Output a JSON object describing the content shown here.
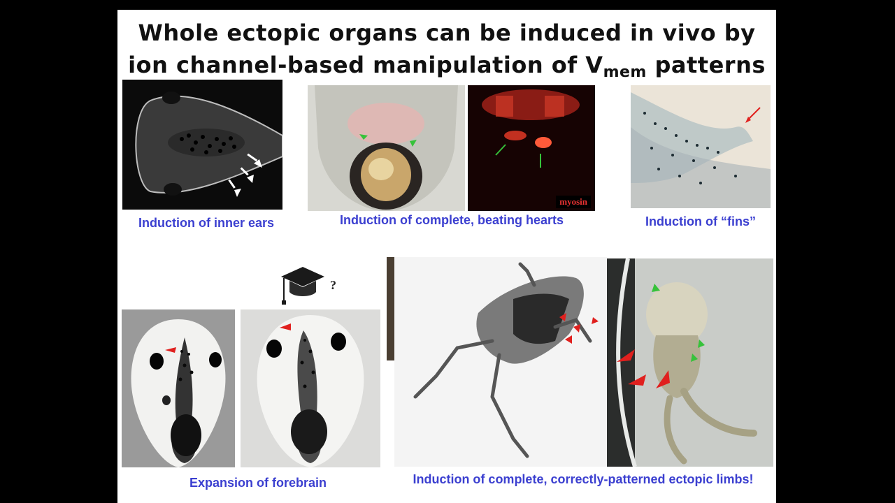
{
  "slide": {
    "title_line1": "Whole ectopic organs can be induced in vivo by",
    "title_line2_pre": "ion channel-based manipulation of V",
    "title_line2_sub": "mem",
    "title_line2_post": " patterns"
  },
  "captions": {
    "inner_ears": "Induction of inner ears",
    "hearts": "Induction of complete, beating hearts",
    "fins": "Induction of “fins”",
    "forebrain": "Expansion of forebrain",
    "limbs": "Induction of complete, correctly-patterned ectopic limbs!"
  },
  "labels": {
    "myosin": "myosin",
    "question_mark": "?"
  },
  "colors": {
    "caption_blue": "#3b3fd0",
    "arrow_red": "#e0201e",
    "arrow_green": "#36c23a"
  },
  "icons": {
    "graduation_cap": "graduation-cap-icon"
  }
}
